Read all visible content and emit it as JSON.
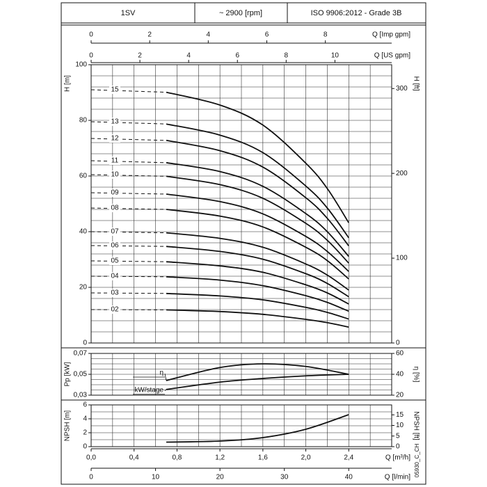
{
  "header": {
    "cells": [
      "1SV",
      "~ 2900 [rpm]",
      "ISO 9906:2012 - Grade 3B"
    ]
  },
  "code": "05930_C_CH",
  "chart_data": [
    {
      "type": "line",
      "ylabel": "H [m]",
      "y2label": "H [ft]",
      "xlim": [
        0,
        2.8
      ],
      "ylim": [
        0,
        100
      ],
      "yticks": [
        0,
        20,
        40,
        60,
        80,
        100
      ],
      "y2lim": [
        0,
        328.084
      ],
      "y2ticks": [
        0,
        100,
        200,
        300
      ],
      "minor_grid": {
        "x_step": 0.2,
        "y_step": 4
      },
      "top_axes": [
        {
          "label": "Q [Imp gpm]",
          "xlim": [
            0,
            10.265
          ],
          "xticks": [
            0,
            2,
            4,
            6,
            8
          ]
        },
        {
          "label": "Q [US gpm]",
          "xlim": [
            0,
            12.328
          ],
          "xticks": [
            0,
            2,
            4,
            6,
            8,
            10
          ]
        }
      ],
      "x": [
        0,
        0.7,
        1.2,
        1.6,
        2.0,
        2.2,
        2.4
      ],
      "series": [
        {
          "name": "15",
          "color": "#111111",
          "values": [
            91,
            90.1,
            85.5,
            78.3,
            64.6,
            55.5,
            43.2
          ]
        },
        {
          "name": "13",
          "color": "#111111",
          "values": [
            79.5,
            78.7,
            74.7,
            68.4,
            56.4,
            48.5,
            37.8
          ]
        },
        {
          "name": "12",
          "color": "#111111",
          "values": [
            73.5,
            72.8,
            69.1,
            63.2,
            52.2,
            44.8,
            34.9
          ]
        },
        {
          "name": "11",
          "color": "#111111",
          "values": [
            65.5,
            64.8,
            61.6,
            56.3,
            46.5,
            40.0,
            31.1
          ]
        },
        {
          "name": "10",
          "color": "#111111",
          "values": [
            60.5,
            59.9,
            56.9,
            52.0,
            43.0,
            36.9,
            28.7
          ]
        },
        {
          "name": "09",
          "color": "#111111",
          "values": [
            54,
            53.5,
            50.8,
            46.4,
            38.3,
            32.9,
            25.7
          ]
        },
        {
          "name": "08",
          "color": "#111111",
          "values": [
            48.5,
            48.0,
            45.6,
            41.7,
            34.4,
            29.6,
            23.0
          ]
        },
        {
          "name": "07",
          "color": "#111111",
          "values": [
            40,
            39.6,
            37.6,
            34.4,
            28.4,
            24.4,
            19.0
          ]
        },
        {
          "name": "06",
          "color": "#111111",
          "values": [
            35,
            34.7,
            32.9,
            30.1,
            24.9,
            21.4,
            16.6
          ]
        },
        {
          "name": "05",
          "color": "#111111",
          "values": [
            29.5,
            29.2,
            27.7,
            25.4,
            20.9,
            18.0,
            14.0
          ]
        },
        {
          "name": "04",
          "color": "#111111",
          "values": [
            24,
            23.8,
            22.6,
            20.6,
            17.0,
            14.6,
            11.4
          ]
        },
        {
          "name": "03",
          "color": "#111111",
          "values": [
            18,
            17.8,
            16.9,
            15.5,
            12.8,
            11.0,
            8.6
          ]
        },
        {
          "name": "02",
          "color": "#111111",
          "values": [
            12,
            11.9,
            11.3,
            10.3,
            8.5,
            7.3,
            5.7
          ]
        }
      ]
    },
    {
      "type": "line",
      "ylabel": "Pp [kW]",
      "y2label": "η [%]",
      "xlim": [
        0,
        2.8
      ],
      "ylim": [
        0.03,
        0.07
      ],
      "yticks": [
        {
          "value": 0.03,
          "label": "0,03"
        },
        {
          "value": 0.05,
          "label": "0,05"
        },
        {
          "value": 0.07,
          "label": "0,07"
        }
      ],
      "y2lim": [
        20,
        60
      ],
      "y2ticks": [
        20,
        40,
        60
      ],
      "minor_grid": {
        "x_step": 0.2,
        "y_step": 0.005
      },
      "x": [
        0.7,
        1.2,
        1.6,
        2.0,
        2.4
      ],
      "series": [
        {
          "name": "η",
          "color": "#111111",
          "axis": "y2",
          "values": [
            34,
            46.5,
            50,
            47.5,
            40
          ]
        },
        {
          "name": "kW/stage",
          "color": "#111111",
          "values": [
            0.0355,
            0.0425,
            0.046,
            0.0485,
            0.05
          ]
        }
      ]
    },
    {
      "type": "line",
      "ylabel": "NPSH [m]",
      "y2label": "NPSH [ft]",
      "xlim": [
        0,
        2.8
      ],
      "ylim": [
        0,
        6
      ],
      "yticks": [
        0,
        2,
        4,
        6
      ],
      "y2lim": [
        0,
        19.685
      ],
      "y2ticks": [
        0,
        5,
        10,
        15
      ],
      "minor_grid": {
        "x_step": 0.2,
        "y_step": 1
      },
      "xlabel": "Q [m³/h]",
      "xticks": [
        {
          "value": 0,
          "label": "0,0"
        },
        {
          "value": 0.4,
          "label": "0,4"
        },
        {
          "value": 0.8,
          "label": "0,8"
        },
        {
          "value": 1.2,
          "label": "1,2"
        },
        {
          "value": 1.6,
          "label": "1,6"
        },
        {
          "value": 2.0,
          "label": "2,0"
        },
        {
          "value": 2.4,
          "label": "2,4"
        }
      ],
      "bottom_axis": {
        "label": "Q [l/min]",
        "xlim": [
          0,
          46.667
        ],
        "xticks": [
          0,
          10,
          20,
          30,
          40
        ]
      },
      "x": [
        0.7,
        1.2,
        1.6,
        2.0,
        2.4
      ],
      "series": [
        {
          "name": "NPSH",
          "color": "#111111",
          "values": [
            0.65,
            0.8,
            1.3,
            2.5,
            4.6
          ]
        }
      ]
    }
  ]
}
